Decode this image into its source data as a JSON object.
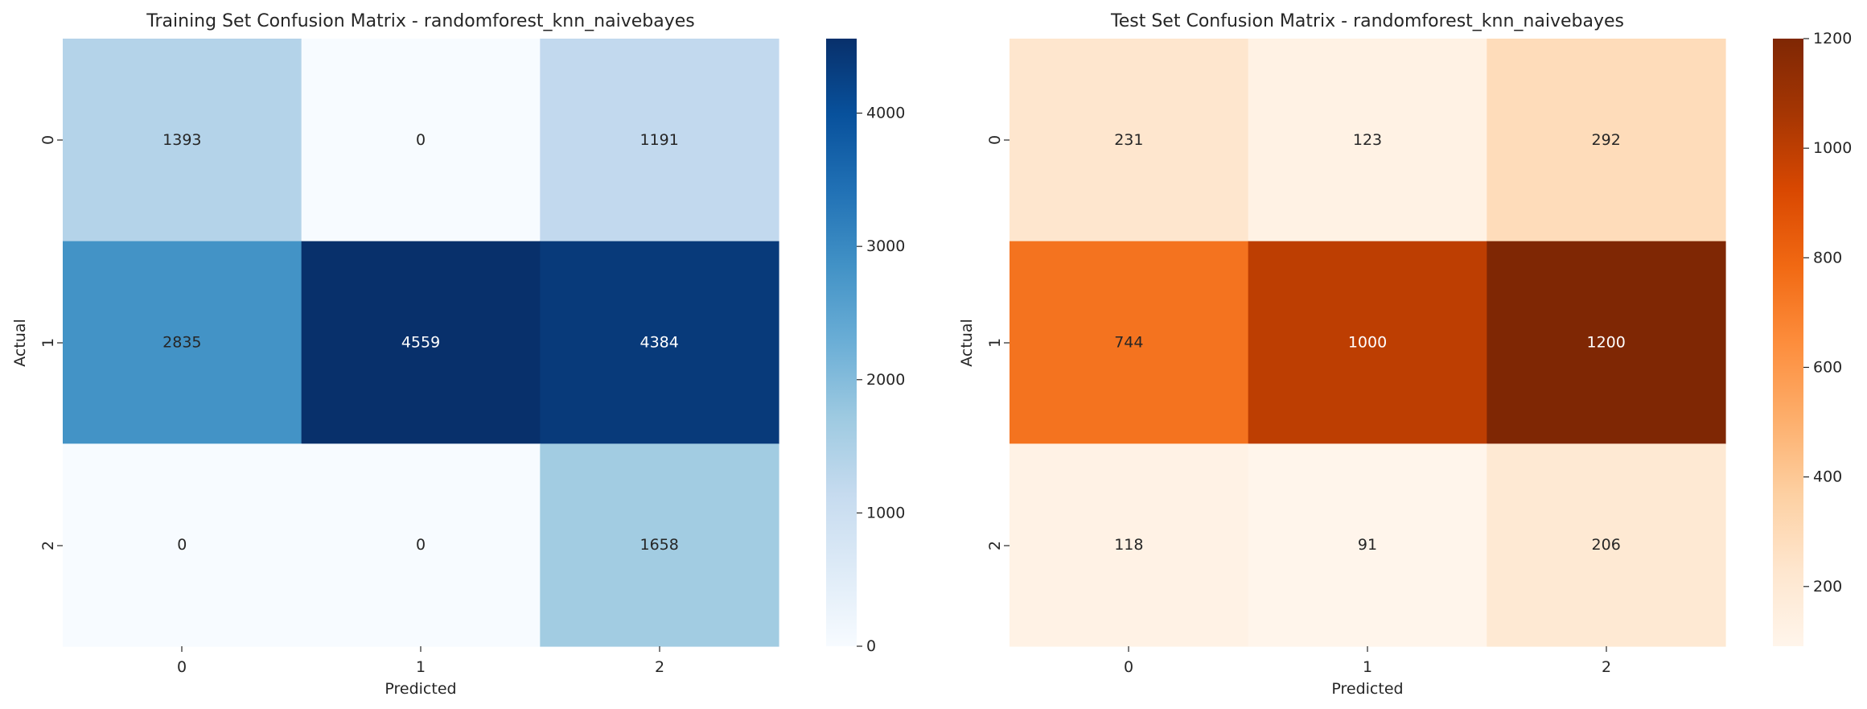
{
  "chart_data": [
    {
      "type": "heatmap",
      "title": "Training Set Confusion Matrix - randomforest_knn_naivebayes",
      "xlabel": "Predicted",
      "ylabel": "Actual",
      "x_categories": [
        "0",
        "1",
        "2"
      ],
      "y_categories": [
        "0",
        "1",
        "2"
      ],
      "values": [
        [
          1393,
          0,
          1191
        ],
        [
          2835,
          4559,
          4384
        ],
        [
          0,
          0,
          1658
        ]
      ],
      "colormap": "Blues",
      "color_range": [
        0,
        4559
      ],
      "colorbar_ticks": [
        0,
        1000,
        2000,
        3000,
        4000
      ],
      "colorbar_tick_labels": [
        "0",
        "1000",
        "2000",
        "3000",
        "4000"
      ]
    },
    {
      "type": "heatmap",
      "title": "Test Set Confusion Matrix - randomforest_knn_naivebayes",
      "xlabel": "Predicted",
      "ylabel": "Actual",
      "x_categories": [
        "0",
        "1",
        "2"
      ],
      "y_categories": [
        "0",
        "1",
        "2"
      ],
      "values": [
        [
          231,
          123,
          292
        ],
        [
          744,
          1000,
          1200
        ],
        [
          118,
          91,
          206
        ]
      ],
      "colormap": "Oranges",
      "color_range": [
        91,
        1200
      ],
      "colorbar_ticks": [
        200,
        400,
        600,
        800,
        1000,
        1200
      ],
      "colorbar_tick_labels": [
        "200",
        "400",
        "600",
        "800",
        "1000",
        "1200"
      ]
    }
  ]
}
